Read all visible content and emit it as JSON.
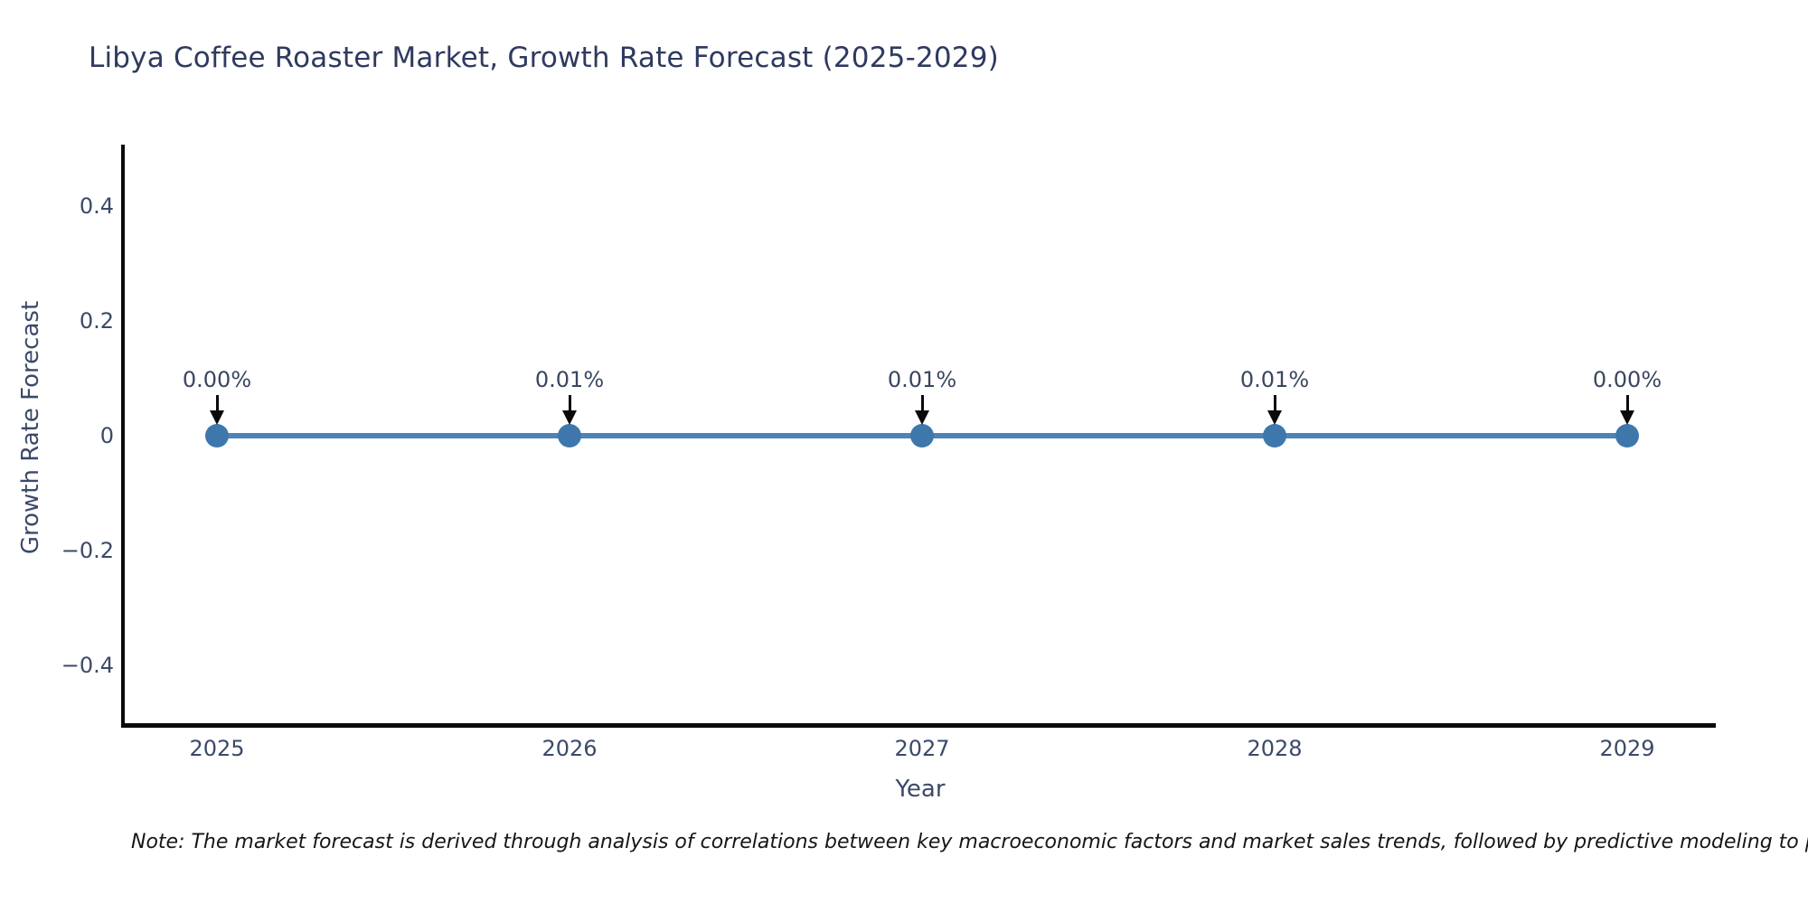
{
  "chart_data": {
    "type": "line",
    "title": "Libya Coffee Roaster Market, Growth Rate Forecast (2025-2029)",
    "xlabel": "Year",
    "ylabel": "Growth Rate Forecast",
    "categories": [
      2025,
      2026,
      2027,
      2028,
      2029
    ],
    "series": [
      {
        "name": "Growth Rate Forecast",
        "values": [
          0.0,
          0.0001,
          0.0001,
          0.0001,
          0.0
        ]
      }
    ],
    "point_labels": [
      "0.00%",
      "0.01%",
      "0.01%",
      "0.01%",
      "0.00%"
    ],
    "ylim": [
      -0.5,
      0.5
    ],
    "yticks": [
      0.4,
      0.2,
      0,
      -0.2,
      -0.4
    ],
    "grid": false,
    "legend": false,
    "colors": {
      "line": "#4d83b6",
      "marker": "#3e77ac",
      "arrow": "#0a0a0a",
      "spine": "#0b0b0b",
      "title_text": "#2e3a5f",
      "axis_text": "#3b4a68",
      "annotation_text": "#3a4660",
      "note_text": "#161616"
    },
    "note": "Note: The market forecast is derived through analysis of correlations between key macroeconomic factors and market sales trends, followed by predictive modeling to project future sa"
  }
}
